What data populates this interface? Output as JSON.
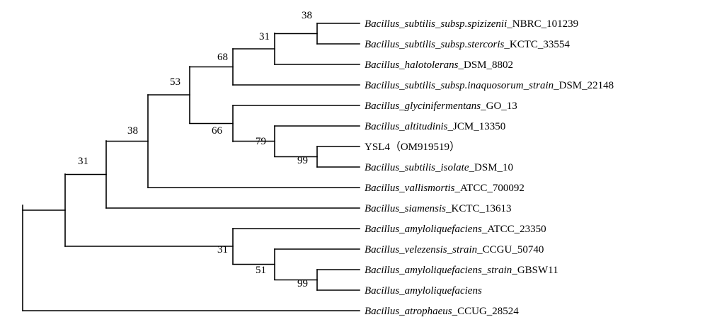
{
  "tree": {
    "leaves": [
      {
        "italic": "Bacillus_subtilis_subsp.spizizenii",
        "suffix": "_NBRC_101239"
      },
      {
        "italic": "Bacillus_subtilis_subsp.stercoris",
        "suffix": "_KCTC_33554"
      },
      {
        "italic": "Bacillus_halotolerans",
        "suffix": "_DSM_8802"
      },
      {
        "italic": "Bacillus_subtilis_subsp.inaquosorum_strain",
        "suffix": "_DSM_22148"
      },
      {
        "italic": "Bacillus_glycinifermentans",
        "suffix": "_GO_13"
      },
      {
        "italic": "Bacillus_altitudinis",
        "suffix": "_JCM_13350"
      },
      {
        "italic": "",
        "suffix": "YSL4（OM919519）"
      },
      {
        "italic": "Bacillus_subtilis_isolate",
        "suffix": "_DSM_10"
      },
      {
        "italic": "Bacillus_vallismortis",
        "suffix": "_ATCC_700092"
      },
      {
        "italic": "Bacillus_siamensis",
        "suffix": "_KCTC_13613"
      },
      {
        "italic": "Bacillus_amyloliquefaciens",
        "suffix": "_ATCC_23350"
      },
      {
        "italic": "Bacillus_velezensis_strain",
        "suffix": "_CCGU_50740"
      },
      {
        "italic": "Bacillus_amyloliquefaciens_strain",
        "suffix": "_GBSW11"
      },
      {
        "italic": "Bacillus_amyloliquefaciens",
        "suffix": ""
      },
      {
        "italic": "Bacillus_atrophaeus",
        "suffix": "_CCUG_28524"
      }
    ],
    "supports": [
      "38",
      "31",
      "68",
      "53",
      "66",
      "79",
      "99",
      "38",
      "31",
      "31",
      "51",
      "99"
    ]
  }
}
